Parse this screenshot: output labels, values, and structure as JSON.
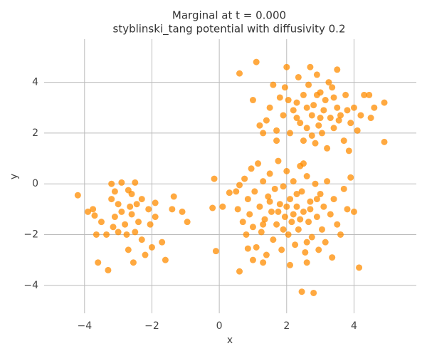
{
  "chart_data": {
    "type": "scatter",
    "title": "Marginal at t = 0.000",
    "subtitle": "styblinski_tang potential with diffusivity 0.2",
    "x_label": "x",
    "y_label": "y",
    "color": "#ff8c00",
    "xlim": [
      -5.2,
      5.85
    ],
    "ylim": [
      -5.1,
      5.7
    ],
    "xticks": [
      {
        "value": -4,
        "label": "−4"
      },
      {
        "value": -2,
        "label": "−2"
      },
      0,
      2,
      4
    ],
    "yticks": [
      {
        "value": -4,
        "label": "−4"
      },
      {
        "value": -2,
        "label": "−2"
      },
      0,
      2,
      4
    ],
    "grid": true,
    "x": [
      -4.2,
      -3.9,
      -3.75,
      -3.7,
      -3.65,
      -3.6,
      -3.5,
      -3.3,
      -3.2,
      -3.2,
      -3.1,
      -3.1,
      -3.0,
      -3.0,
      -2.9,
      -2.9,
      -2.8,
      -2.75,
      -2.7,
      -2.7,
      -2.6,
      -2.6,
      -2.55,
      -2.5,
      -2.5,
      -2.45,
      -2.4,
      -2.3,
      -2.3,
      -2.2,
      -2.1,
      -2.05,
      -2.0,
      -1.9,
      -1.9,
      -1.7,
      -1.6,
      -1.35,
      -1.4,
      -1.1,
      -0.95,
      -3.35,
      -3.15,
      -2.65,
      0.6,
      1.1,
      1.0,
      1.2,
      1.3,
      1.4,
      1.5,
      1.6,
      1.7,
      1.8,
      1.9,
      1.95,
      2.0,
      2.1,
      2.2,
      2.3,
      2.35,
      2.4,
      2.5,
      2.5,
      2.6,
      2.65,
      2.7,
      2.75,
      2.8,
      2.85,
      2.9,
      2.95,
      3.0,
      3.05,
      3.1,
      3.15,
      3.2,
      3.25,
      3.3,
      3.35,
      3.4,
      3.5,
      3.5,
      3.6,
      3.7,
      3.75,
      3.8,
      3.85,
      3.9,
      4.0,
      4.1,
      4.2,
      4.3,
      4.45,
      4.5,
      4.6,
      4.9,
      4.9,
      2.05,
      2.6,
      3.0,
      2.3,
      2.9,
      3.4,
      1.7,
      2.75,
      3.55,
      -0.2,
      -0.15,
      -0.1,
      0.1,
      0.3,
      0.5,
      0.55,
      0.6,
      0.7,
      0.75,
      0.8,
      0.85,
      0.9,
      0.95,
      1.0,
      1.0,
      1.05,
      1.1,
      1.15,
      1.2,
      1.25,
      1.3,
      1.35,
      1.4,
      1.45,
      1.5,
      1.55,
      1.6,
      1.65,
      1.7,
      1.75,
      1.8,
      1.85,
      1.9,
      1.95,
      2.0,
      2.05,
      2.1,
      2.15,
      2.2,
      2.25,
      2.3,
      2.35,
      2.4,
      2.45,
      2.5,
      2.55,
      2.6,
      2.6,
      2.65,
      2.7,
      2.75,
      2.8,
      2.85,
      2.9,
      2.95,
      3.0,
      3.05,
      3.1,
      3.15,
      3.2,
      3.3,
      3.35,
      3.4,
      3.5,
      3.6,
      3.7,
      3.8,
      3.9,
      4.0,
      4.15,
      2.45,
      0.6,
      1.3,
      2.1,
      1.5,
      2.0,
      2.3,
      2.7,
      2.4,
      1.9,
      2.6,
      1.75,
      2.2,
      2.9,
      1.3,
      2.5,
      0.85
    ],
    "values": [
      -0.45,
      -1.1,
      -1.0,
      -1.25,
      -2.0,
      -3.1,
      -1.5,
      -3.4,
      0.0,
      -0.6,
      -0.3,
      -1.3,
      -0.8,
      -1.9,
      0.05,
      -1.1,
      -1.6,
      -2.0,
      -0.25,
      -2.6,
      -0.4,
      -1.2,
      -3.1,
      0.05,
      -1.9,
      -0.8,
      -1.5,
      -2.2,
      -0.6,
      -2.8,
      -1.0,
      -1.6,
      -2.5,
      -0.75,
      -1.3,
      -2.3,
      -3.0,
      -0.5,
      -1.0,
      -1.1,
      -1.5,
      -2.0,
      -1.7,
      -0.9,
      4.35,
      4.8,
      3.3,
      2.3,
      2.0,
      2.5,
      3.0,
      3.9,
      2.1,
      3.4,
      2.7,
      3.8,
      4.6,
      2.0,
      2.9,
      3.2,
      4.2,
      2.4,
      1.7,
      3.5,
      2.2,
      3.9,
      4.6,
      2.7,
      3.1,
      1.6,
      4.3,
      2.3,
      3.6,
      2.0,
      2.9,
      3.3,
      1.4,
      4.0,
      2.6,
      3.8,
      2.2,
      4.5,
      3.0,
      2.7,
      1.7,
      3.5,
      2.9,
      1.3,
      2.4,
      3.0,
      2.1,
      2.7,
      3.5,
      3.5,
      2.6,
      3.0,
      3.2,
      1.65,
      3.3,
      3.0,
      2.6,
      2.6,
      3.5,
      3.4,
      1.7,
      1.9,
      2.5,
      -0.95,
      0.2,
      -2.65,
      -0.9,
      -0.35,
      -0.3,
      -1.0,
      -0.05,
      -1.5,
      0.2,
      -2.0,
      -0.6,
      -1.2,
      0.6,
      -1.7,
      -3.0,
      -0.3,
      -2.5,
      0.8,
      -0.9,
      -1.9,
      0.1,
      -1.4,
      -2.8,
      -0.5,
      0.4,
      -1.1,
      -2.2,
      -0.2,
      -1.6,
      0.9,
      -0.8,
      -2.6,
      -0.1,
      -1.3,
      0.5,
      -2.0,
      -0.6,
      -1.5,
      0.1,
      -2.4,
      -0.9,
      -1.8,
      0.7,
      -0.3,
      -1.1,
      -2.7,
      -3.1,
      0.3,
      -1.5,
      -0.7,
      -2.1,
      -4.3,
      0.0,
      -1.3,
      -2.6,
      -0.4,
      -1.8,
      -0.9,
      -2.3,
      0.1,
      -1.2,
      -2.9,
      -0.6,
      -1.6,
      -2.0,
      -0.2,
      -1.0,
      0.25,
      -1.1,
      -3.3,
      -4.25,
      -3.45,
      -3.1,
      -3.2,
      -0.7,
      -0.9,
      -0.4,
      -1.0,
      -1.4,
      -1.8,
      -2.3,
      -1.1,
      -1.2,
      -0.6,
      -1.6,
      0.8,
      -2.55
    ]
  }
}
